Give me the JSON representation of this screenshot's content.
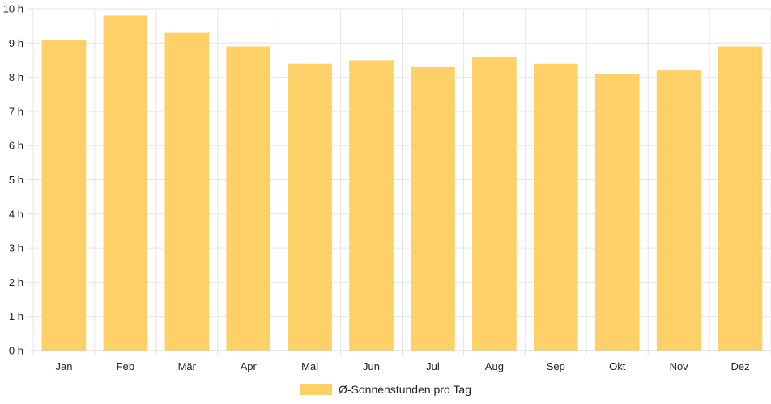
{
  "chart_data": {
    "type": "bar",
    "categories": [
      "Jan",
      "Feb",
      "Mär",
      "Apr",
      "Mai",
      "Jun",
      "Jul",
      "Aug",
      "Sep",
      "Okt",
      "Nov",
      "Dez"
    ],
    "series": [
      {
        "name": "Ø-Sonnenstunden pro Tag",
        "values": [
          9.1,
          9.8,
          9.3,
          8.9,
          8.4,
          8.5,
          8.3,
          8.6,
          8.4,
          8.1,
          8.2,
          8.9
        ]
      }
    ],
    "ylim": [
      0,
      10
    ],
    "yticks": [
      "0 h",
      "1 h",
      "2 h",
      "3 h",
      "4 h",
      "5 h",
      "6 h",
      "7 h",
      "8 h",
      "9 h",
      "10 h"
    ],
    "grid": true,
    "legend_position": "bottom",
    "colors": {
      "bar": "#fdd068",
      "grid": "#e6e6e6",
      "text": "#222222"
    }
  }
}
